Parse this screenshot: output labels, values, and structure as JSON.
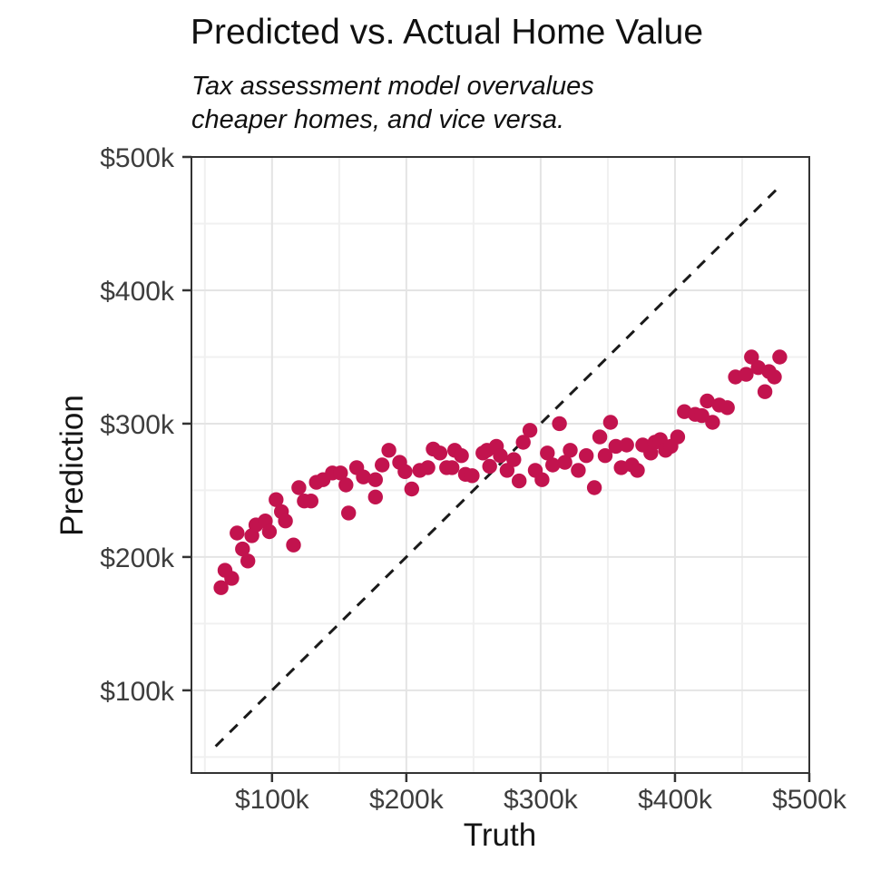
{
  "page": {
    "background": "#ffffff"
  },
  "chart_data": {
    "type": "scatter",
    "title": "Predicted vs. Actual Home Value",
    "subtitle": "Tax assessment model overvalues\ncheaper homes, and vice versa.",
    "xlabel": "Truth",
    "ylabel": "Prediction",
    "xlim": [
      40,
      500
    ],
    "ylim": [
      38,
      500
    ],
    "x_ticks": {
      "values": [
        100,
        200,
        300,
        400,
        500
      ],
      "labels": [
        "$100k",
        "$200k",
        "$300k",
        "$400k",
        "$500k"
      ]
    },
    "y_ticks": {
      "values": [
        100,
        200,
        300,
        400,
        500
      ],
      "labels": [
        "$100k",
        "$200k",
        "$300k",
        "$400k",
        "$500k"
      ]
    },
    "minor_grid_step": 50,
    "grid": "major and minor gridlines on white panel",
    "legend_position": "none",
    "identity_line": {
      "slope": 1,
      "intercept": 0,
      "x_start": 58,
      "x_end": 479,
      "style": "dashed",
      "color": "#1a1a1a"
    },
    "point_style": {
      "color": "#C2134E",
      "radius_px": 8.2,
      "opacity": 1
    },
    "style_colors": {
      "grid_major": "#E4E4E4",
      "grid_minor": "#F0F0F0",
      "panel_border": "#333333",
      "tick_mark": "#333333",
      "tick_label": "#3d3d3d",
      "axis_title": "#151515",
      "title_text": "#111111"
    },
    "points_units": "x = Truth in $k, y = Prediction in $k",
    "points": [
      [
        62,
        177
      ],
      [
        65,
        190
      ],
      [
        70,
        184
      ],
      [
        74,
        218
      ],
      [
        78,
        206
      ],
      [
        82,
        197
      ],
      [
        85,
        216
      ],
      [
        88,
        224
      ],
      [
        95,
        227
      ],
      [
        98,
        219
      ],
      [
        103,
        243
      ],
      [
        107,
        234
      ],
      [
        110,
        227
      ],
      [
        116,
        209
      ],
      [
        120,
        252
      ],
      [
        124,
        242
      ],
      [
        129,
        242
      ],
      [
        133,
        256
      ],
      [
        138,
        258
      ],
      [
        145,
        263
      ],
      [
        151,
        263
      ],
      [
        155,
        254
      ],
      [
        157,
        233
      ],
      [
        163,
        267
      ],
      [
        168,
        260
      ],
      [
        177,
        258
      ],
      [
        177,
        245
      ],
      [
        182,
        269
      ],
      [
        187,
        280
      ],
      [
        195,
        271
      ],
      [
        199,
        264
      ],
      [
        204,
        251
      ],
      [
        210,
        265
      ],
      [
        216,
        267
      ],
      [
        220,
        281
      ],
      [
        225,
        278
      ],
      [
        230,
        267
      ],
      [
        234,
        267
      ],
      [
        236,
        280
      ],
      [
        241,
        276
      ],
      [
        244,
        262
      ],
      [
        249,
        261
      ],
      [
        257,
        278
      ],
      [
        260,
        280
      ],
      [
        262,
        268
      ],
      [
        267,
        283
      ],
      [
        270,
        276
      ],
      [
        275,
        265
      ],
      [
        280,
        273
      ],
      [
        284,
        257
      ],
      [
        287,
        286
      ],
      [
        292,
        295
      ],
      [
        296,
        265
      ],
      [
        301,
        258
      ],
      [
        305,
        278
      ],
      [
        309,
        269
      ],
      [
        314,
        300
      ],
      [
        318,
        271
      ],
      [
        322,
        280
      ],
      [
        328,
        265
      ],
      [
        334,
        276
      ],
      [
        340,
        252
      ],
      [
        344,
        290
      ],
      [
        348,
        276
      ],
      [
        352,
        301
      ],
      [
        356,
        283
      ],
      [
        360,
        267
      ],
      [
        364,
        284
      ],
      [
        368,
        269
      ],
      [
        372,
        265
      ],
      [
        376,
        284
      ],
      [
        382,
        278
      ],
      [
        385,
        286
      ],
      [
        389,
        288
      ],
      [
        393,
        280
      ],
      [
        397,
        283
      ],
      [
        402,
        290
      ],
      [
        407,
        309
      ],
      [
        415,
        307
      ],
      [
        420,
        306
      ],
      [
        424,
        317
      ],
      [
        428,
        301
      ],
      [
        433,
        314
      ],
      [
        439,
        312
      ],
      [
        445,
        335
      ],
      [
        453,
        337
      ],
      [
        457,
        350
      ],
      [
        462,
        342
      ],
      [
        467,
        324
      ],
      [
        470,
        339
      ],
      [
        474,
        335
      ],
      [
        478,
        350
      ]
    ]
  }
}
